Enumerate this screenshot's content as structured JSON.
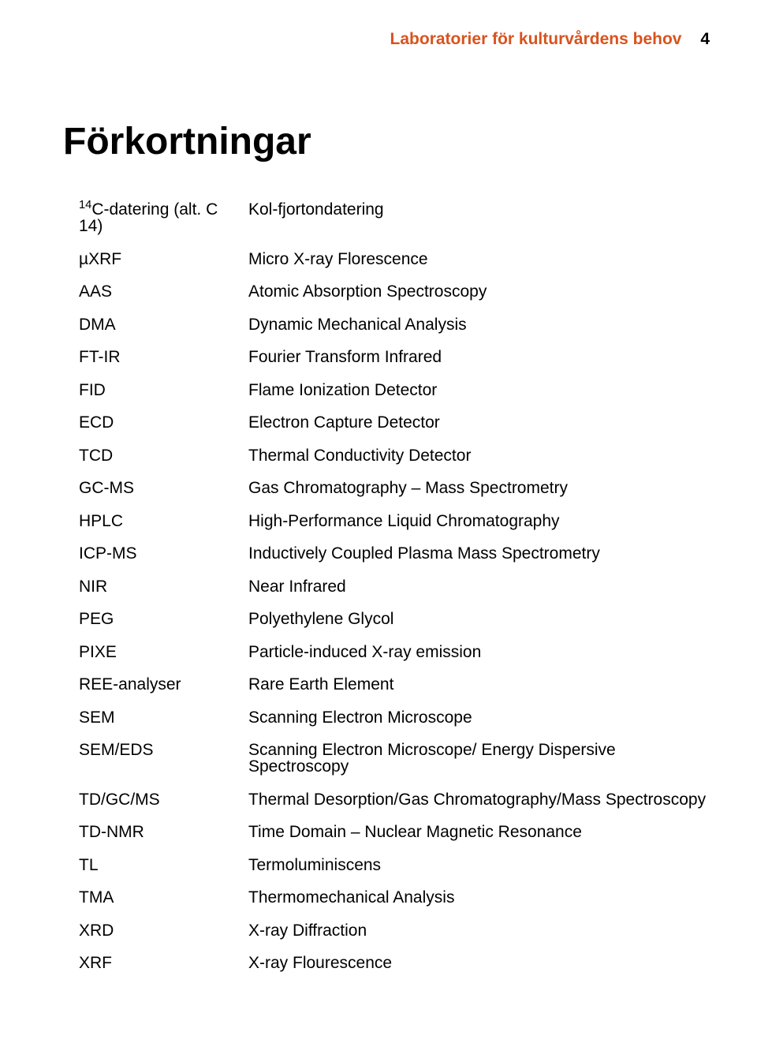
{
  "header": {
    "title": "Laboratorier för kulturvårdens behov",
    "page_number": "4",
    "title_color": "#d8531e"
  },
  "heading": "Förkortningar",
  "rows": [
    {
      "abbr_html": "<sup>14</sup>C-datering (alt. C 14)",
      "def": "Kol-fjortondatering"
    },
    {
      "abbr_html": "µXRF",
      "def": "Micro X-ray Florescence"
    },
    {
      "abbr_html": "AAS",
      "def": "Atomic Absorption Spectroscopy"
    },
    {
      "abbr_html": "DMA",
      "def": "Dynamic Mechanical Analysis"
    },
    {
      "abbr_html": "FT-IR",
      "def": "Fourier Transform Infrared"
    },
    {
      "abbr_html": "FID",
      "def": "Flame Ionization Detector"
    },
    {
      "abbr_html": "ECD",
      "def": "Electron Capture Detector"
    },
    {
      "abbr_html": "TCD",
      "def": "Thermal Conductivity Detector"
    },
    {
      "abbr_html": "GC-MS",
      "def": "Gas Chromatography – Mass Spectrometry"
    },
    {
      "abbr_html": "HPLC",
      "def": "High-Performance Liquid Chromatography"
    },
    {
      "abbr_html": "ICP-MS",
      "def": "Inductively Coupled Plasma Mass Spectrometry"
    },
    {
      "abbr_html": "NIR",
      "def": "Near Infrared"
    },
    {
      "abbr_html": "PEG",
      "def": "Polyethylene Glycol"
    },
    {
      "abbr_html": "PIXE",
      "def": "Particle-induced X-ray emission"
    },
    {
      "abbr_html": "REE-analyser",
      "def": "Rare Earth Element"
    },
    {
      "abbr_html": "SEM",
      "def": "Scanning Electron Microscope"
    },
    {
      "abbr_html": "SEM/EDS",
      "def": "Scanning Electron Microscope/ Energy Dispersive Spectroscopy"
    },
    {
      "abbr_html": "TD/GC/MS",
      "def": "Thermal Desorption/Gas Chromatography/Mass Spectroscopy"
    },
    {
      "abbr_html": "TD-NMR",
      "def": "Time Domain – Nuclear Magnetic Resonance"
    },
    {
      "abbr_html": "TL",
      "def": "Termoluminiscens"
    },
    {
      "abbr_html": "TMA",
      "def": "Thermomechanical Analysis"
    },
    {
      "abbr_html": "XRD",
      "def": "X-ray Diffraction"
    },
    {
      "abbr_html": "XRF",
      "def": "X-ray Flourescence"
    }
  ]
}
